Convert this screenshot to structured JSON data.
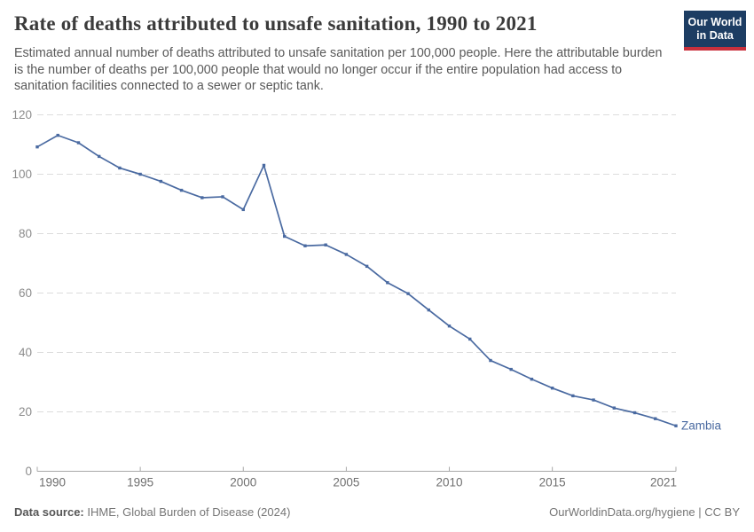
{
  "header": {
    "title": "Rate of deaths attributed to unsafe sanitation, 1990 to 2021",
    "subtitle": "Estimated annual number of deaths attributed to unsafe sanitation per 100,000 people. Here the attributable burden is the number of deaths per 100,000 people that would no longer occur if the entire population had access to sanitation facilities connected to a sewer or septic tank.",
    "logo": {
      "line1": "Our World",
      "line2": "in Data"
    }
  },
  "colors": {
    "line": "#4a6aa1",
    "logo_bg": "#1d3d63",
    "logo_stripe": "#c9303c",
    "gridline": "#dcdcdc",
    "axis": "#a8a8a8",
    "y_tick_text": "#8c8c8c",
    "x_tick_text": "#6f6f6f"
  },
  "chart_data": {
    "type": "line",
    "title": "Rate of deaths attributed to unsafe sanitation, 1990 to 2021",
    "xlabel": "",
    "ylabel": "",
    "xlim": [
      1990,
      2021
    ],
    "ylim": [
      0,
      120
    ],
    "grid": "horizontal-dashed",
    "legend_position": "end-of-line-label",
    "end_label": "Zambia",
    "xticks": [
      1990,
      1995,
      2000,
      2005,
      2010,
      2015,
      2021
    ],
    "yticks": [
      0,
      20,
      40,
      60,
      80,
      100,
      120
    ],
    "x": [
      1990,
      1991,
      1992,
      1993,
      1994,
      1995,
      1996,
      1997,
      1998,
      1999,
      2000,
      2001,
      2002,
      2003,
      2004,
      2005,
      2006,
      2007,
      2008,
      2009,
      2010,
      2011,
      2012,
      2013,
      2014,
      2015,
      2016,
      2017,
      2018,
      2019,
      2020,
      2021
    ],
    "series": [
      {
        "name": "Zambia",
        "values": [
          109.2,
          113.1,
          110.6,
          106.0,
          102.1,
          100.0,
          97.6,
          94.6,
          92.1,
          92.4,
          88.1,
          103.0,
          79.1,
          75.9,
          76.2,
          73.0,
          69.0,
          63.5,
          59.8,
          54.3,
          48.9,
          44.5,
          37.3,
          34.3,
          31.0,
          28.0,
          25.4,
          24.0,
          21.3,
          19.7,
          17.7,
          15.3
        ]
      }
    ]
  },
  "footer": {
    "source_label": "Data source:",
    "source_text": " IHME, Global Burden of Disease (2024)",
    "url": "OurWorldinData.org/hygiene",
    "separator": " | ",
    "license": "CC BY"
  }
}
